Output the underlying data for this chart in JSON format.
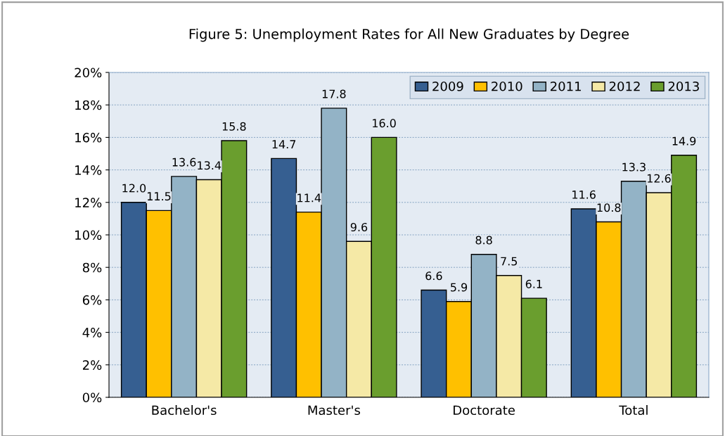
{
  "chart_data": {
    "type": "bar",
    "title": "Figure 5: Unemployment Rates for All New Graduates by Degree",
    "categories": [
      "Bachelor's",
      "Master's",
      "Doctorate",
      "Total"
    ],
    "series": [
      {
        "name": "2009",
        "color": "#365f91",
        "values": [
          12.0,
          14.7,
          6.6,
          11.6
        ],
        "value_labels": [
          "12.0",
          "14.7",
          "6.6",
          "11.6"
        ]
      },
      {
        "name": "2010",
        "color": "#ffc000",
        "values": [
          11.5,
          11.4,
          5.9,
          10.8
        ],
        "value_labels": [
          "11.5",
          "11.4",
          "5.9",
          "10.8"
        ]
      },
      {
        "name": "2011",
        "color": "#93b3c6",
        "values": [
          13.6,
          17.8,
          8.8,
          13.3
        ],
        "value_labels": [
          "13.6",
          "17.8",
          "8.8",
          "13.3"
        ]
      },
      {
        "name": "2012",
        "color": "#f5e9a6",
        "values": [
          13.4,
          9.6,
          7.5,
          12.6
        ],
        "value_labels": [
          "13.4",
          "9.6",
          "7.5",
          "12.6"
        ]
      },
      {
        "name": "2013",
        "color": "#6a9e2e",
        "values": [
          15.8,
          16.0,
          6.1,
          14.9
        ],
        "value_labels": [
          "15.8",
          "16.0",
          "6.1",
          "14.9"
        ]
      }
    ],
    "ylim": [
      0,
      20
    ],
    "yticks": [
      {
        "value": 0,
        "label": "0%"
      },
      {
        "value": 2,
        "label": "2%"
      },
      {
        "value": 4,
        "label": "4%"
      },
      {
        "value": 6,
        "label": "6%"
      },
      {
        "value": 8,
        "label": "8%"
      },
      {
        "value": 10,
        "label": "10%"
      },
      {
        "value": 12,
        "label": "12%"
      },
      {
        "value": 14,
        "label": "14%"
      },
      {
        "value": 16,
        "label": "16%"
      },
      {
        "value": 18,
        "label": "18%"
      },
      {
        "value": 20,
        "label": "20%"
      }
    ],
    "grid": "y",
    "legend": "top right"
  }
}
